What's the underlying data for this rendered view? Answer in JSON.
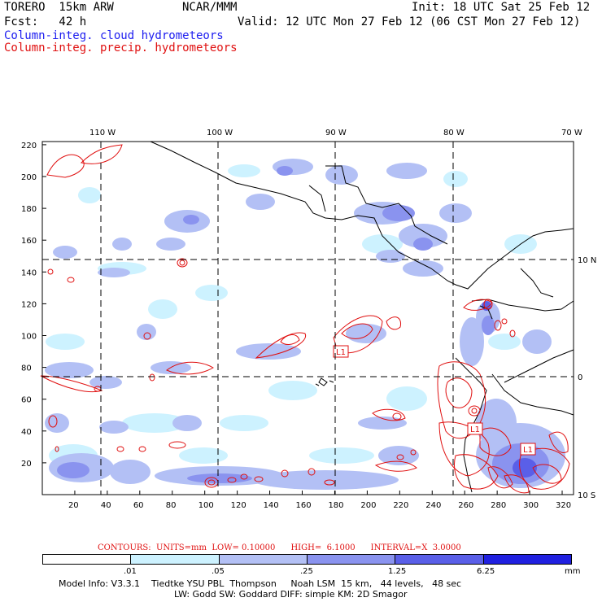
{
  "header": {
    "model": "TORERO  15km ARW",
    "org": "NCAR/MMM",
    "init": "Init: 18 UTC Sat 25 Feb 12",
    "fcst": "Fcst:   42 h",
    "valid": "Valid: 12 UTC Mon 27 Feb 12 (06 CST Mon 27 Feb 12)",
    "field_cloud": "Column-integ. cloud hydrometeors",
    "field_precip": "Column-integ. precip. hydrometeors"
  },
  "colors": {
    "cloud_text": "#1d1df0",
    "precip_text": "#e01010",
    "shade_1": "#ffffff",
    "shade_2": "#cdf2ff",
    "shade_3": "#b3c0f5",
    "shade_4": "#8a93ef",
    "shade_5": "#5a5fe8",
    "shade_6": "#2020e0"
  },
  "map": {
    "lon_labels": [
      "110 W",
      "100 W",
      "90 W",
      "80 W",
      "70 W"
    ],
    "lat_labels": [
      "10 N",
      "0",
      "10 S"
    ],
    "x_ticks": [
      "20",
      "40",
      "60",
      "80",
      "100",
      "120",
      "140",
      "160",
      "180",
      "200",
      "220",
      "240",
      "260",
      "280",
      "300",
      "320"
    ],
    "y_ticks": [
      "20",
      "40",
      "60",
      "80",
      "100",
      "120",
      "140",
      "160",
      "180",
      "200",
      "220"
    ],
    "box_labels": [
      "L1",
      "L1",
      "L1"
    ]
  },
  "contours": {
    "text": "CONTOURS:  UNITS=mm  LOW= 0.10000      HIGH=  6.1000      INTERVAL=X  3.0000"
  },
  "legend": {
    "labels": [
      ".01",
      ".05",
      ".25",
      "1.25",
      "6.25",
      "mm"
    ]
  },
  "footer": {
    "line1": "Model Info: V3.3.1    Tiedtke YSU PBL  Thompson     Noah LSM  15 km,   44 levels,   48 sec",
    "line2": "LW: Godd SW: Goddard DIFF: simple KM: 2D Smagor"
  }
}
